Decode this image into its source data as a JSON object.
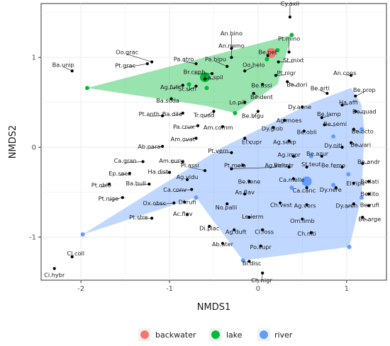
{
  "chart_data": {
    "type": "scatter",
    "xlabel": "NMDS1",
    "ylabel": "NMDS2",
    "xlim": [
      -2.45,
      1.45
    ],
    "ylim": [
      -1.48,
      1.6
    ],
    "x_ticks": [
      {
        "value": -2,
        "label": "-2"
      },
      {
        "value": -1,
        "label": "-1"
      },
      {
        "value": 0,
        "label": "0"
      },
      {
        "value": 1,
        "label": "1"
      }
    ],
    "y_ticks": [
      {
        "value": -1,
        "label": "-1"
      },
      {
        "value": 0,
        "label": "0"
      },
      {
        "value": 1,
        "label": "1"
      }
    ],
    "grid": true,
    "legend": {
      "position": "bottom",
      "entries": [
        {
          "label": "backwater",
          "color": "#F8766D"
        },
        {
          "label": "lake",
          "color": "#00BA38"
        },
        {
          "label": "river",
          "color": "#619CFF"
        }
      ]
    },
    "hulls": [
      {
        "group": "lake",
        "color": "#00BA38",
        "points": [
          [
            -1.93,
            0.66
          ],
          [
            0.38,
            1.25
          ],
          [
            0.22,
            0.7
          ],
          [
            -0.26,
            0.38
          ],
          [
            -0.58,
            0.46
          ]
        ]
      },
      {
        "group": "river",
        "color": "#619CFF",
        "points": [
          [
            -1.98,
            -0.97
          ],
          [
            -0.7,
            -0.56
          ],
          [
            -0.17,
            -1.26
          ],
          [
            1.03,
            -1.11
          ],
          [
            1.17,
            -0.56
          ],
          [
            1.2,
            0.2
          ],
          [
            1.17,
            0.47
          ],
          [
            1.05,
            0.66
          ],
          [
            0.62,
            0.5
          ],
          [
            -0.4,
            0.0
          ]
        ]
      }
    ],
    "site_points": [
      {
        "group": "backwater",
        "x": 0.15,
        "y": 1.05,
        "size": 7
      },
      {
        "group": "lake",
        "x": -0.6,
        "y": 0.78,
        "size": 7
      },
      {
        "group": "lake",
        "x": 0.38,
        "y": 1.25,
        "size": 3
      },
      {
        "group": "lake",
        "x": 0.22,
        "y": 1.08,
        "size": 3
      },
      {
        "group": "lake",
        "x": 0.1,
        "y": 0.98,
        "size": 3
      },
      {
        "group": "lake",
        "x": -1.93,
        "y": 0.66,
        "size": 3
      },
      {
        "group": "lake",
        "x": -0.78,
        "y": 0.7,
        "size": 3
      },
      {
        "group": "lake",
        "x": -0.58,
        "y": 0.66,
        "size": 3
      },
      {
        "group": "lake",
        "x": -0.26,
        "y": 0.38,
        "size": 3
      },
      {
        "group": "river",
        "x": 0.55,
        "y": -0.38,
        "size": 7
      },
      {
        "group": "river",
        "x": 1.02,
        "y": -0.3,
        "size": 3
      },
      {
        "group": "river",
        "x": 1.17,
        "y": 0.2,
        "size": 3
      },
      {
        "group": "river",
        "x": 1.17,
        "y": -0.56,
        "size": 3
      },
      {
        "group": "river",
        "x": 1.03,
        "y": -1.11,
        "size": 3
      },
      {
        "group": "river",
        "x": -1.98,
        "y": -0.97,
        "size": 3
      },
      {
        "group": "river",
        "x": -0.17,
        "y": -1.26,
        "size": 3
      },
      {
        "group": "river",
        "x": -0.7,
        "y": -0.56,
        "size": 3
      },
      {
        "group": "river",
        "x": 0.85,
        "y": 0.12,
        "size": 3
      },
      {
        "group": "river",
        "x": 0.38,
        "y": -0.45,
        "size": 3
      },
      {
        "group": "river",
        "x": 0.6,
        "y": -0.1,
        "size": 3
      },
      {
        "group": "river",
        "x": 0.85,
        "y": -0.42,
        "size": 3
      }
    ],
    "species": [
      {
        "name": "Cy.axil",
        "x": 0.36,
        "y": 1.45,
        "lx": 0.36,
        "ly": 1.6
      },
      {
        "name": "An.bino",
        "x": -0.3,
        "y": 1.1,
        "lx": -0.3,
        "ly": 1.27
      },
      {
        "name": "An.nemo",
        "x": -0.3,
        "y": 1.0,
        "lx": -0.3,
        "ly": 1.13
      },
      {
        "name": "Pt.mino",
        "x": 0.35,
        "y": 1.06,
        "lx": 0.35,
        "ly": 1.21
      },
      {
        "name": "Be.pet",
        "x": 0.11,
        "y": 1.02,
        "lx": 0.11,
        "ly": 1.06
      },
      {
        "name": "St.mixt",
        "x": 0.23,
        "y": 0.95,
        "lx": 0.4,
        "ly": 0.97
      },
      {
        "name": "Oo.grac",
        "x": -1.2,
        "y": 0.95,
        "lx": -1.48,
        "ly": 1.06
      },
      {
        "name": "Pt.grac",
        "x": -1.25,
        "y": 0.93,
        "lx": -1.5,
        "ly": 0.91
      },
      {
        "name": "Ba.unip",
        "x": -2.1,
        "y": 0.85,
        "lx": -2.2,
        "ly": 0.92
      },
      {
        "name": "Pa.atro",
        "x": -0.7,
        "y": 0.93,
        "lx": -0.84,
        "ly": 0.98
      },
      {
        "name": "Pa.bipu",
        "x": -0.35,
        "y": 0.9,
        "lx": -0.48,
        "ly": 0.98
      },
      {
        "name": "Oo.helo",
        "x": -0.15,
        "y": 0.85,
        "lx": -0.05,
        "ly": 0.92
      },
      {
        "name": "Br.ceph",
        "x": -0.52,
        "y": 0.82,
        "lx": -0.72,
        "ly": 0.84
      },
      {
        "name": "Pt.nigr",
        "x": 0.2,
        "y": 0.8,
        "lx": 0.32,
        "ly": 0.83
      },
      {
        "name": "La.spil",
        "x": -0.6,
        "y": 0.76,
        "lx": -0.5,
        "ly": 0.78
      },
      {
        "name": "Ag.fuli",
        "x": -0.85,
        "y": 0.69,
        "lx": -1.0,
        "ly": 0.67
      },
      {
        "name": "St.skri",
        "x": -0.7,
        "y": 0.68,
        "lx": -0.8,
        "ly": 0.65
      },
      {
        "name": "Be.assi",
        "x": 0.05,
        "y": 0.7,
        "lx": 0.04,
        "ly": 0.69
      },
      {
        "name": "Be.dori",
        "x": 0.33,
        "y": 0.73,
        "lx": 0.44,
        "ly": 0.7
      },
      {
        "name": "Be.dent",
        "x": -0.05,
        "y": 0.6,
        "lx": 0.04,
        "ly": 0.56
      },
      {
        "name": "Ba.soda",
        "x": -0.98,
        "y": 0.54,
        "lx": -1.02,
        "ly": 0.52
      },
      {
        "name": "Lo.pili",
        "x": -0.15,
        "y": 0.5,
        "lx": -0.23,
        "ly": 0.5
      },
      {
        "name": "An.cons",
        "x": 1.05,
        "y": 0.8,
        "lx": 0.98,
        "ly": 0.83
      },
      {
        "name": "Be.arti",
        "x": 0.78,
        "y": 0.6,
        "lx": 0.7,
        "ly": 0.66
      },
      {
        "name": "Be.prop",
        "x": 1.1,
        "y": 0.57,
        "lx": 1.2,
        "ly": 0.64
      },
      {
        "name": "Ha.affi",
        "x": 0.95,
        "y": 0.47,
        "lx": 1.02,
        "ly": 0.5
      },
      {
        "name": "Be.quad",
        "x": 1.1,
        "y": 0.4,
        "lx": 1.2,
        "ly": 0.4
      },
      {
        "name": "Ba.dila",
        "x": -0.85,
        "y": 0.38,
        "lx": -0.97,
        "ly": 0.37
      },
      {
        "name": "Tr.quad",
        "x": -0.5,
        "y": 0.4,
        "lx": -0.61,
        "ly": 0.36
      },
      {
        "name": "Be.bigu",
        "x": 0.0,
        "y": 0.4,
        "lx": -0.06,
        "ly": 0.35
      },
      {
        "name": "Dy.aene",
        "x": 0.5,
        "y": 0.45,
        "lx": 0.47,
        "ly": 0.45
      },
      {
        "name": "Be.lamp",
        "x": 0.72,
        "y": 0.33,
        "lx": 0.8,
        "ly": 0.37
      },
      {
        "name": "Pt.anth",
        "x": -1.08,
        "y": 0.35,
        "lx": -1.23,
        "ly": 0.37
      },
      {
        "name": "Ag.moes",
        "x": 0.3,
        "y": 0.3,
        "lx": 0.35,
        "ly": 0.3
      },
      {
        "name": "Be.semi",
        "x": 0.75,
        "y": 0.25,
        "lx": 0.87,
        "ly": 0.26
      },
      {
        "name": "Pa.crux",
        "x": -0.68,
        "y": 0.24,
        "lx": -0.84,
        "ly": 0.23
      },
      {
        "name": "Am.comm",
        "x": -0.4,
        "y": 0.23,
        "lx": -0.45,
        "ly": 0.22
      },
      {
        "name": "Dy.glob",
        "x": 0.17,
        "y": 0.22,
        "lx": 0.16,
        "ly": 0.21
      },
      {
        "name": "Be.octo",
        "x": 1.08,
        "y": 0.2,
        "lx": 1.18,
        "ly": 0.18
      },
      {
        "name": "Be.obli",
        "x": 0.52,
        "y": 0.18,
        "lx": 0.55,
        "ly": 0.17
      },
      {
        "name": "Am.ovat",
        "x": -0.7,
        "y": 0.1,
        "lx": -0.85,
        "ly": 0.09
      },
      {
        "name": "El.cupr",
        "x": -0.15,
        "y": 0.1,
        "lx": -0.07,
        "ly": 0.06
      },
      {
        "name": "Ag.sexp",
        "x": 0.35,
        "y": 0.07,
        "lx": 0.3,
        "ly": 0.06
      },
      {
        "name": "Dy.niti",
        "x": 0.95,
        "y": 0.0,
        "lx": 0.85,
        "ly": 0.02
      },
      {
        "name": "Be.vari",
        "x": 1.05,
        "y": 0.05,
        "lx": 1.16,
        "ly": 0.03
      },
      {
        "name": "Ab.para",
        "x": -1.08,
        "y": 0.01,
        "lx": -1.23,
        "ly": 0.01
      },
      {
        "name": "Pt.vern",
        "x": -0.3,
        "y": -0.06,
        "lx": -0.45,
        "ly": -0.04
      },
      {
        "name": "Ag.impr",
        "x": 0.4,
        "y": -0.1,
        "lx": 0.35,
        "ly": -0.08
      },
      {
        "name": "Be.azur",
        "x": 0.72,
        "y": -0.1,
        "lx": 0.67,
        "ly": -0.07
      },
      {
        "name": "Ca.gran",
        "x": -1.3,
        "y": -0.16,
        "lx": -1.5,
        "ly": -0.15
      },
      {
        "name": "Am.eury",
        "x": -0.85,
        "y": -0.16,
        "lx": -0.98,
        "ly": -0.15
      },
      {
        "name": "Be.andr",
        "x": 1.18,
        "y": -0.18,
        "lx": 1.25,
        "ly": -0.16
      },
      {
        "name": "Pt.mela",
        "x": -0.17,
        "y": -0.2,
        "lx": -0.26,
        "ly": -0.2
      },
      {
        "name": "Ag.vidu",
        "x": -0.3,
        "y": -0.24,
        "lx": 0.2,
        "ly": -0.2
      },
      {
        "name": "Be.femo",
        "x": 0.95,
        "y": -0.22,
        "lx": 0.85,
        "ly": -0.2
      },
      {
        "name": "Pl.assi",
        "x": -0.6,
        "y": -0.26,
        "lx": -0.77,
        "ly": -0.2
      },
      {
        "name": "Be.tetr",
        "x": 0.35,
        "y": -0.22,
        "lx": 0.29,
        "ly": -0.2
      },
      {
        "name": "St.teut",
        "x": 0.55,
        "y": -0.22,
        "lx": 0.6,
        "ly": -0.19
      },
      {
        "name": "Ha.dist",
        "x": -1.0,
        "y": -0.28,
        "lx": -1.13,
        "ly": -0.27
      },
      {
        "name": "Ep.seca",
        "x": -1.45,
        "y": -0.29,
        "lx": -1.56,
        "ly": -0.29
      },
      {
        "name": "Ag.vidu",
        "x": -0.8,
        "y": -0.36,
        "lx": -0.8,
        "ly": -0.33
      },
      {
        "name": "Be.tene",
        "x": -0.1,
        "y": -0.38,
        "lx": -0.1,
        "ly": -0.38
      },
      {
        "name": "Ca.melle",
        "x": 0.4,
        "y": -0.35,
        "lx": 0.38,
        "ly": -0.36
      },
      {
        "name": "Ca.canc",
        "x": 0.55,
        "y": -0.45,
        "lx": 0.52,
        "ly": -0.48
      },
      {
        "name": "Ba.bull",
        "x": -1.23,
        "y": -0.41,
        "lx": -1.38,
        "ly": -0.4
      },
      {
        "name": "Pt.oblo",
        "x": -1.68,
        "y": -0.41,
        "lx": -1.77,
        "ly": -0.42
      },
      {
        "name": "Ca.conv",
        "x": -0.75,
        "y": -0.47,
        "lx": -0.94,
        "ly": -0.47
      },
      {
        "name": "Dy.nere",
        "x": 0.88,
        "y": -0.45,
        "lx": 0.82,
        "ly": -0.47
      },
      {
        "name": "El.ripa",
        "x": 1.08,
        "y": -0.4,
        "lx": 1.1,
        "ly": -0.4
      },
      {
        "name": "Be.lati",
        "x": 1.25,
        "y": -0.38,
        "lx": 1.26,
        "ly": -0.38
      },
      {
        "name": "As.flav",
        "x": -0.15,
        "y": -0.52,
        "lx": -0.15,
        "ly": -0.5
      },
      {
        "name": "Be.lito",
        "x": 1.25,
        "y": -0.52,
        "lx": 1.26,
        "ly": -0.52
      },
      {
        "name": "Pt.nige",
        "x": -1.53,
        "y": -0.56,
        "lx": -1.69,
        "ly": -0.57
      },
      {
        "name": "Ox.obsc",
        "x": -0.95,
        "y": -0.62,
        "lx": -1.17,
        "ly": -0.62
      },
      {
        "name": "Di.rufi",
        "x": -0.83,
        "y": -0.61,
        "lx": -0.8,
        "ly": -0.61
      },
      {
        "name": "No.palli",
        "x": -0.35,
        "y": -0.63,
        "lx": -0.36,
        "ly": -0.67
      },
      {
        "name": "Ch.vest",
        "x": 0.25,
        "y": -0.62,
        "lx": 0.26,
        "ly": -0.64
      },
      {
        "name": "Ag.vers",
        "x": 0.55,
        "y": -0.64,
        "lx": 0.53,
        "ly": -0.65
      },
      {
        "name": "Dy.aren",
        "x": 1.08,
        "y": -0.63,
        "lx": 1.0,
        "ly": -0.65
      },
      {
        "name": "Be.rufi",
        "x": 1.25,
        "y": -0.65,
        "lx": 1.26,
        "ly": -0.64
      },
      {
        "name": "Ac.flav",
        "x": -0.8,
        "y": -0.75,
        "lx": -0.85,
        "ly": -0.74
      },
      {
        "name": "Le.ierm",
        "x": -0.1,
        "y": -0.78,
        "lx": -0.06,
        "ly": -0.77
      },
      {
        "name": "Pt.stre",
        "x": -1.2,
        "y": -0.79,
        "lx": -1.35,
        "ly": -0.78
      },
      {
        "name": "Be.arge",
        "x": 1.18,
        "y": -0.78,
        "lx": 1.26,
        "ly": -0.8
      },
      {
        "name": "Om.limb",
        "x": 0.5,
        "y": -0.8,
        "lx": 0.5,
        "ly": -0.82
      },
      {
        "name": "Di.plac",
        "x": -0.55,
        "y": -0.88,
        "lx": -0.55,
        "ly": -0.9
      },
      {
        "name": "Ag.duft",
        "x": -0.27,
        "y": -0.92,
        "lx": -0.25,
        "ly": -0.94
      },
      {
        "name": "Cl.foss",
        "x": 0.05,
        "y": -0.92,
        "lx": 0.07,
        "ly": -0.94
      },
      {
        "name": "Ch.niti",
        "x": 0.6,
        "y": -0.95,
        "lx": 0.55,
        "ly": -0.96
      },
      {
        "name": "Ab.ater",
        "x": -0.4,
        "y": -1.07,
        "lx": -0.4,
        "ly": -1.08
      },
      {
        "name": "Po.cupr",
        "x": 0.03,
        "y": -1.1,
        "lx": 0.03,
        "ly": -1.11
      },
      {
        "name": "Cl.coll",
        "x": -2.1,
        "y": -1.22,
        "lx": -2.06,
        "ly": -1.18
      },
      {
        "name": "Bl.disc",
        "x": -0.1,
        "y": -1.27,
        "lx": -0.07,
        "ly": -1.29
      },
      {
        "name": "Ci.hybr",
        "x": -2.3,
        "y": -1.35,
        "lx": -2.3,
        "ly": -1.42
      },
      {
        "name": "Ch.nigr",
        "x": 0.05,
        "y": -1.4,
        "lx": 0.04,
        "ly": -1.48
      }
    ]
  }
}
